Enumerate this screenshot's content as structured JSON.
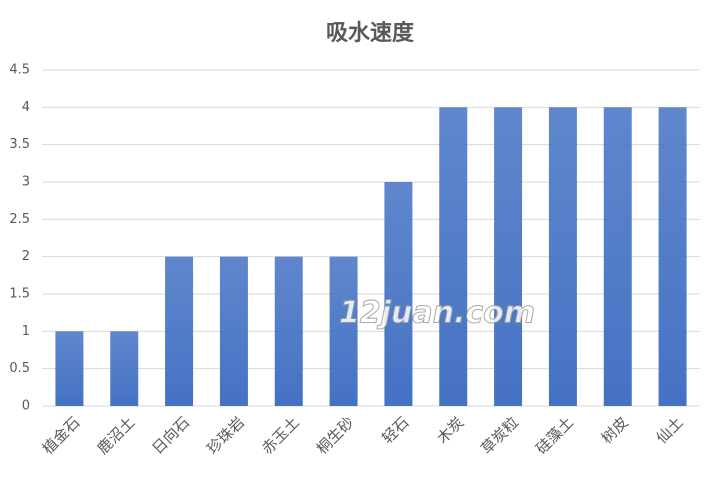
{
  "chart_data": {
    "type": "bar",
    "title": "吸水速度",
    "categories": [
      "植金石",
      "鹿沼土",
      "日向石",
      "珍珠岩",
      "赤玉土",
      "桐生砂",
      "轻石",
      "木炭",
      "草炭粒",
      "硅藻土",
      "树皮",
      "仙土"
    ],
    "values": [
      1,
      1,
      2,
      2,
      2,
      2,
      3,
      4,
      4,
      4,
      4,
      4
    ],
    "color": "#4472c4",
    "ylim": [
      0,
      4.5
    ],
    "yticks": [
      0,
      0.5,
      1,
      1.5,
      2,
      2.5,
      3,
      3.5,
      4,
      4.5
    ],
    "grid": true,
    "watermark": "12juan.com"
  }
}
